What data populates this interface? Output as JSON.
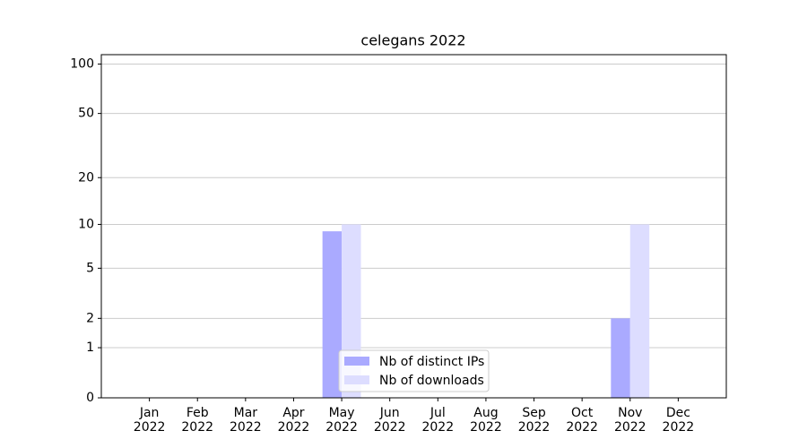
{
  "chart_data": {
    "type": "bar",
    "title": "celegans 2022",
    "categories": [
      "Jan\n2022",
      "Feb\n2022",
      "Mar\n2022",
      "Apr\n2022",
      "May\n2022",
      "Jun\n2022",
      "Jul\n2022",
      "Aug\n2022",
      "Sep\n2022",
      "Oct\n2022",
      "Nov\n2022",
      "Dec\n2022"
    ],
    "series": [
      {
        "name": "Nb of distinct IPs",
        "color": "#aaaaff",
        "values": [
          0,
          0,
          0,
          0,
          9,
          0,
          0,
          0,
          0,
          0,
          2,
          0
        ]
      },
      {
        "name": "Nb of downloads",
        "color": "#ddddff",
        "values": [
          0,
          0,
          0,
          0,
          10,
          0,
          0,
          0,
          0,
          0,
          10,
          0
        ]
      }
    ],
    "yscale": "log1p",
    "ylim": [
      0,
      114
    ],
    "yticks": [
      0,
      1,
      2,
      5,
      10,
      20,
      50,
      100
    ],
    "grid": true,
    "legend": "lower center"
  }
}
